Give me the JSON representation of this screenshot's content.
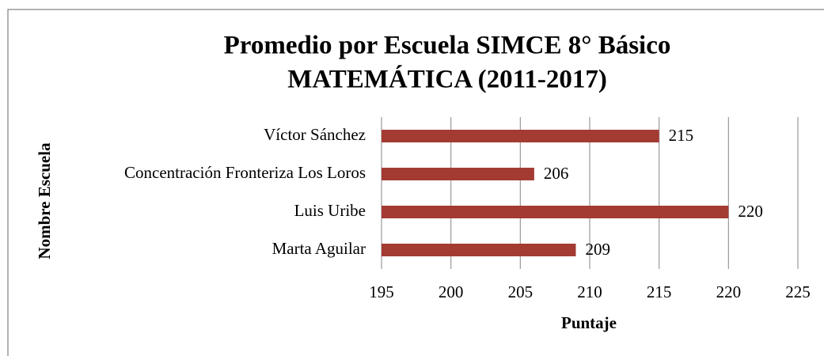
{
  "chart_data": {
    "type": "barh",
    "title": [
      "Promedio por Escuela SIMCE 8° Básico",
      "MATEMÁTICA (2011-2017)"
    ],
    "x_label": "Puntaje",
    "y_label": "Nombre Escuela",
    "categories": [
      "Víctor Sánchez",
      "Concentración Fronteriza Los Loros",
      "Luis Uribe",
      "Marta Aguilar"
    ],
    "values": [
      215,
      206,
      220,
      209
    ],
    "color": "#a33b33",
    "xlim": [
      195,
      225
    ],
    "xticks": [
      195,
      200,
      205,
      210,
      215,
      220,
      225
    ],
    "grid": true
  }
}
